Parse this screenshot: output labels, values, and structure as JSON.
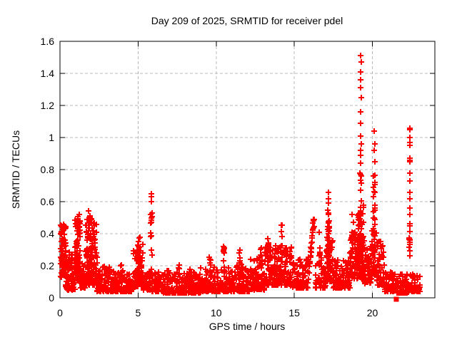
{
  "page": {
    "background": "#ffffff"
  },
  "chart_data": {
    "type": "scatter",
    "title": "Day 209 of 2025, SRMTID for receiver pdel",
    "xlabel": "GPS time / hours",
    "ylabel": "SRMTID / TECUs",
    "xlim": [
      0,
      24
    ],
    "ylim": [
      0,
      1.6
    ],
    "xticks": {
      "values": [
        0,
        5,
        10,
        15,
        20
      ],
      "labels": [
        "0",
        "5",
        "10",
        "15",
        "20"
      ]
    },
    "yticks": {
      "values": [
        0,
        0.2,
        0.4,
        0.6,
        0.8,
        1.0,
        1.2,
        1.4,
        1.6
      ],
      "labels": [
        "0",
        "0.2",
        "0.4",
        "0.6",
        "0.8",
        "1",
        "1.2",
        "1.4",
        "1.6"
      ]
    },
    "grid": {
      "show": true,
      "color": "#b8b8b8",
      "dash": "4 3"
    },
    "marker": {
      "shape": "plus",
      "color": "#ff0000",
      "size": 8,
      "stroke": 2
    },
    "series_name": "SRMTID",
    "seed": 209,
    "bands": [
      [
        0.02,
        0.38,
        85,
        0.13,
        0.46,
        1.3
      ],
      [
        0.35,
        0.95,
        70,
        0.05,
        0.24,
        2.0
      ],
      [
        0.95,
        1.32,
        85,
        0.1,
        0.52,
        1.4
      ],
      [
        1.32,
        1.62,
        45,
        0.06,
        0.22,
        2.0
      ],
      [
        1.62,
        2.02,
        85,
        0.08,
        0.55,
        1.5
      ],
      [
        2.02,
        2.38,
        65,
        0.08,
        0.47,
        1.6
      ],
      [
        2.38,
        3.35,
        95,
        0.04,
        0.2,
        2.2
      ],
      [
        3.35,
        4.7,
        115,
        0.04,
        0.17,
        2.2
      ],
      [
        4.7,
        5.35,
        75,
        0.07,
        0.36,
        1.7
      ],
      [
        5.35,
        5.8,
        40,
        0.05,
        0.17,
        2.0
      ],
      [
        5.9,
        6.6,
        55,
        0.04,
        0.16,
        2.2
      ],
      [
        6.6,
        9.0,
        195,
        0.03,
        0.16,
        2.3
      ],
      [
        9.0,
        10.05,
        85,
        0.04,
        0.19,
        2.2
      ],
      [
        10.05,
        11.05,
        85,
        0.04,
        0.19,
        2.2
      ],
      [
        11.05,
        12.15,
        95,
        0.04,
        0.21,
        2.2
      ],
      [
        12.15,
        13.1,
        95,
        0.05,
        0.25,
        2.0
      ],
      [
        13.1,
        14.6,
        150,
        0.08,
        0.33,
        1.8
      ],
      [
        14.6,
        15.9,
        105,
        0.06,
        0.26,
        2.1
      ],
      [
        16.3,
        17.0,
        55,
        0.06,
        0.28,
        2.0
      ],
      [
        17.0,
        17.48,
        55,
        0.1,
        0.38,
        1.6
      ],
      [
        17.48,
        18.55,
        100,
        0.06,
        0.24,
        2.2
      ],
      [
        18.55,
        19.05,
        65,
        0.12,
        0.42,
        1.5
      ],
      [
        19.05,
        19.48,
        90,
        0.12,
        0.58,
        1.4
      ],
      [
        19.48,
        19.98,
        55,
        0.09,
        0.33,
        1.8
      ],
      [
        19.98,
        20.3,
        45,
        0.14,
        0.45,
        1.6
      ],
      [
        20.3,
        20.75,
        50,
        0.08,
        0.36,
        1.8
      ],
      [
        20.75,
        21.55,
        60,
        0.04,
        0.17,
        2.2
      ],
      [
        21.55,
        22.35,
        70,
        0.03,
        0.15,
        2.2
      ],
      [
        22.42,
        23.05,
        55,
        0.04,
        0.15,
        2.2
      ]
    ],
    "spikes": [
      [
        0.55,
        8,
        0.14,
        0.33,
        0.05
      ],
      [
        0.75,
        6,
        0.14,
        0.3,
        0.04
      ],
      [
        3.9,
        6,
        0.1,
        0.21,
        0.05
      ],
      [
        5.05,
        10,
        0.18,
        0.42,
        0.07
      ],
      [
        5.85,
        13,
        0.12,
        0.55,
        0.04
      ],
      [
        6.9,
        5,
        0.1,
        0.18,
        0.04
      ],
      [
        7.6,
        7,
        0.1,
        0.22,
        0.05
      ],
      [
        8.3,
        7,
        0.1,
        0.21,
        0.05
      ],
      [
        9.6,
        8,
        0.13,
        0.27,
        0.04
      ],
      [
        10.5,
        9,
        0.14,
        0.33,
        0.05
      ],
      [
        11.5,
        9,
        0.15,
        0.3,
        0.05
      ],
      [
        12.85,
        9,
        0.18,
        0.37,
        0.05
      ],
      [
        13.35,
        10,
        0.2,
        0.42,
        0.05
      ],
      [
        14.2,
        11,
        0.22,
        0.47,
        0.05
      ],
      [
        14.78,
        7,
        0.22,
        0.4,
        0.04
      ],
      [
        16.62,
        7,
        0.2,
        0.45,
        0.04
      ],
      [
        17.2,
        24,
        0.15,
        0.55,
        0.06
      ],
      [
        19.25,
        20,
        0.28,
        0.78,
        0.05
      ],
      [
        20.12,
        16,
        0.45,
        0.82,
        0.05
      ],
      [
        22.4,
        12,
        0.25,
        0.48,
        0.03
      ]
    ],
    "streaks": [
      [
        15.95,
        16.28,
        0.17,
        0.5,
        26
      ]
    ],
    "outliers": [
      [
        5.83,
        0.65
      ],
      [
        5.87,
        0.63
      ],
      [
        5.85,
        0.6
      ],
      [
        5.86,
        0.5
      ],
      [
        5.84,
        0.47
      ],
      [
        17.17,
        0.66
      ],
      [
        17.21,
        0.62
      ],
      [
        17.19,
        0.59
      ],
      [
        18.72,
        0.52
      ],
      [
        18.78,
        0.47
      ],
      [
        19.25,
        1.51
      ],
      [
        19.27,
        1.47
      ],
      [
        19.24,
        1.41
      ],
      [
        19.26,
        1.36
      ],
      [
        19.24,
        1.31
      ],
      [
        19.27,
        1.25
      ],
      [
        19.25,
        1.16
      ],
      [
        19.26,
        1.09
      ],
      [
        19.24,
        1.01
      ],
      [
        19.27,
        0.96
      ],
      [
        19.25,
        0.92
      ],
      [
        19.26,
        0.89
      ],
      [
        19.24,
        0.84
      ],
      [
        20.13,
        1.04
      ],
      [
        20.15,
        0.96
      ],
      [
        20.12,
        0.92
      ],
      [
        20.14,
        0.85
      ],
      [
        22.38,
        1.06
      ],
      [
        22.42,
        1.05
      ],
      [
        22.4,
        1.0
      ],
      [
        22.39,
        0.97
      ],
      [
        22.41,
        0.95
      ],
      [
        22.4,
        0.87
      ],
      [
        22.39,
        0.86
      ],
      [
        22.41,
        0.85
      ],
      [
        22.4,
        0.78
      ],
      [
        22.39,
        0.73
      ],
      [
        22.41,
        0.66
      ],
      [
        22.4,
        0.62
      ],
      [
        22.39,
        0.56
      ],
      [
        22.41,
        0.52
      ]
    ],
    "special_points": [
      {
        "x": 21.53,
        "y": 0.0,
        "marker": "filled-square",
        "color": "#ff0000"
      }
    ]
  }
}
